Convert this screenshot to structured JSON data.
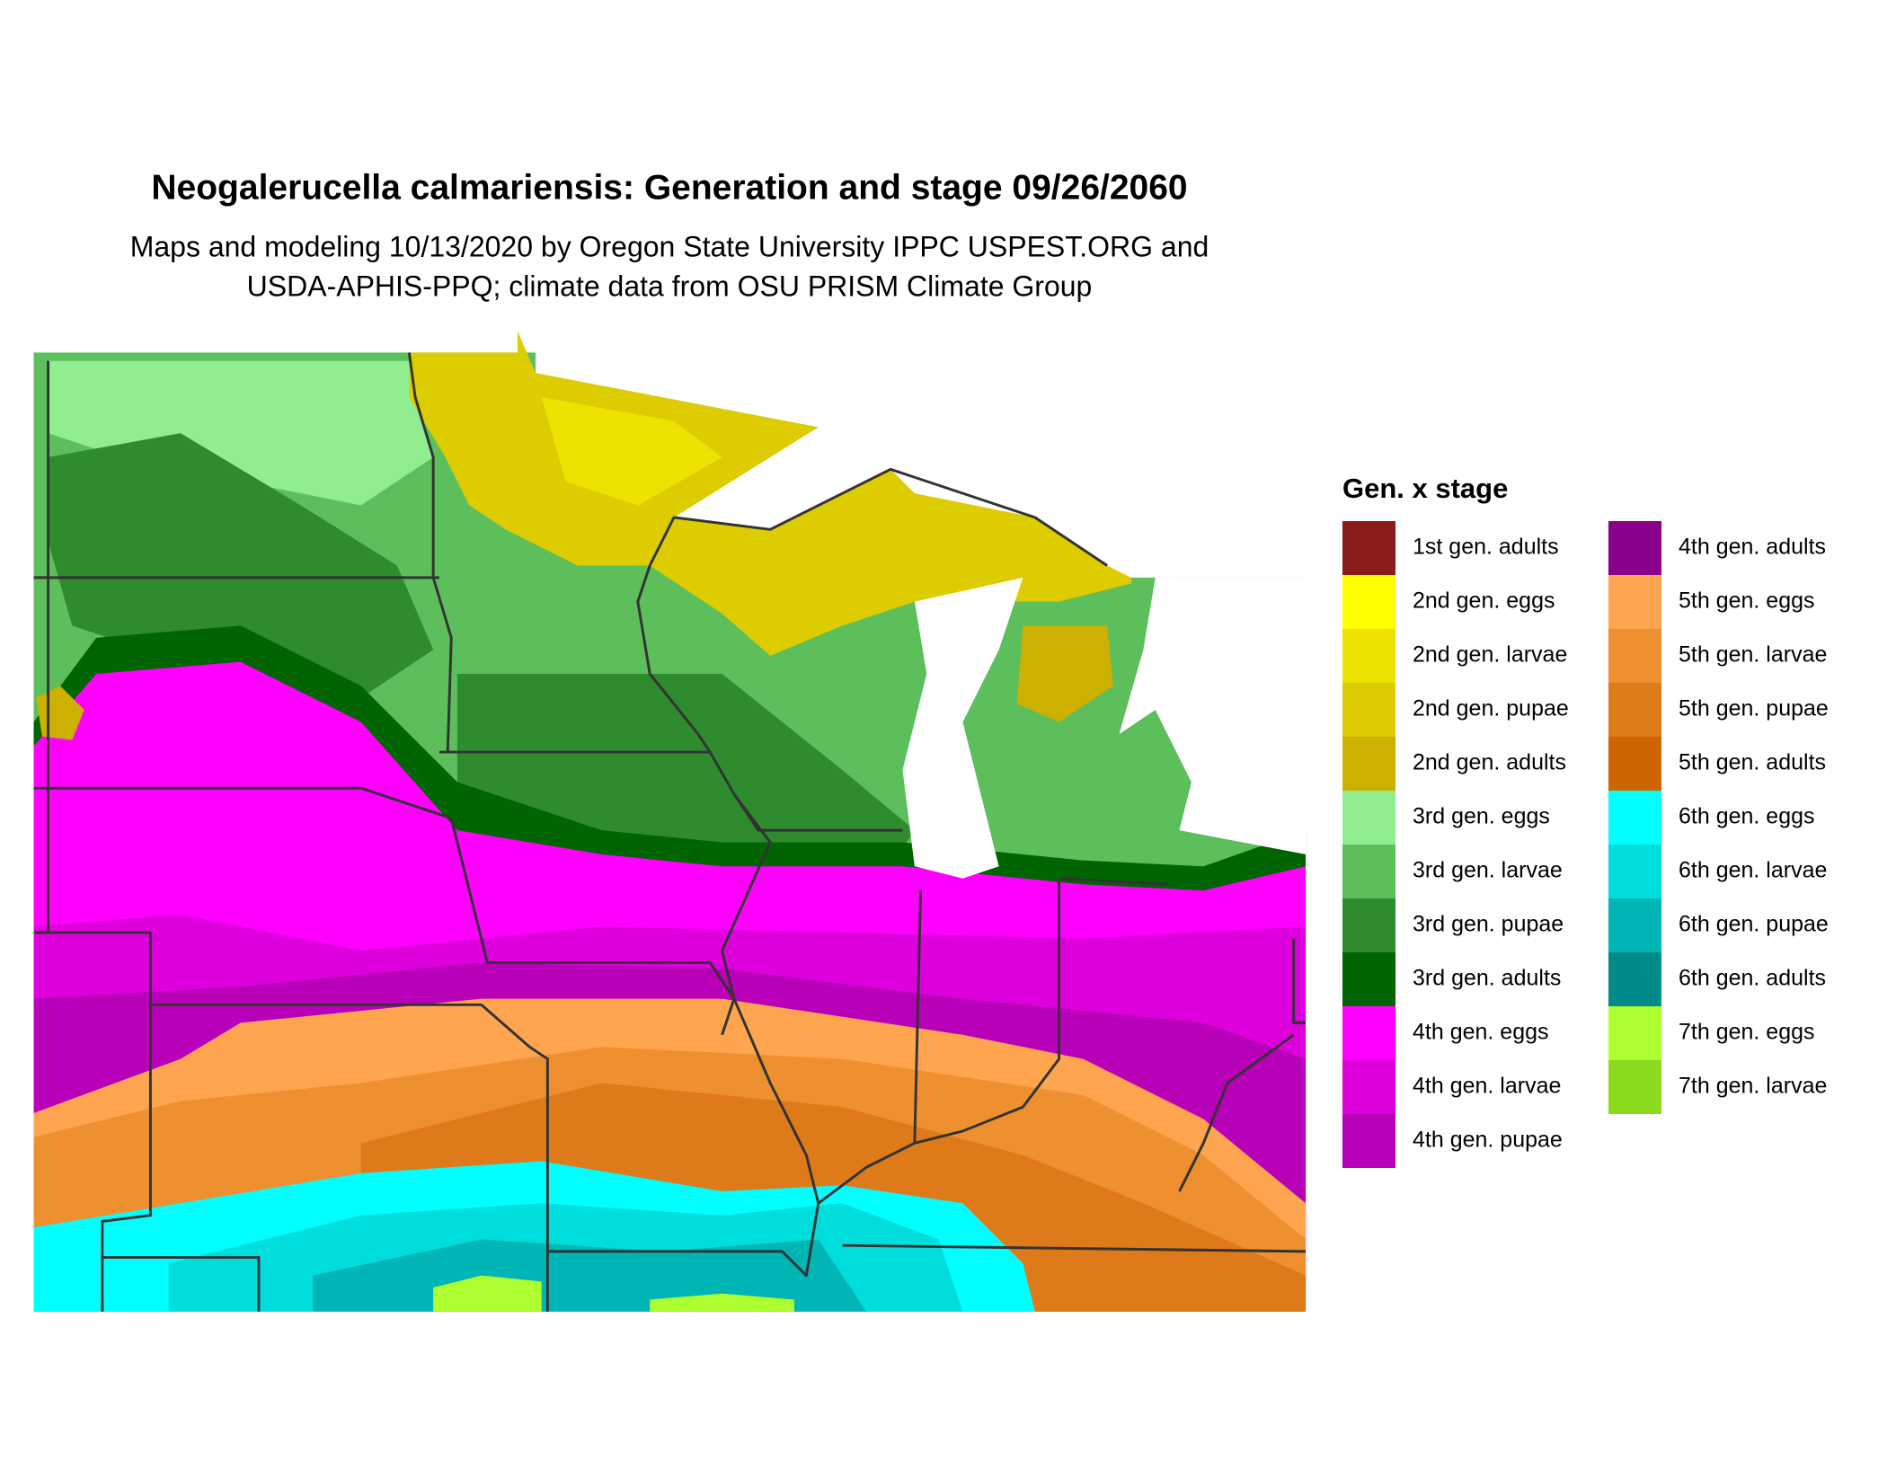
{
  "title": "Neogalerucella calmariensis: Generation and stage 09/26/2060",
  "subtitle": [
    "Maps and modeling 10/13/2020 by Oregon State University IPPC USPEST.ORG and",
    "USDA-APHIS-PPQ; climate data from OSU PRISM Climate Group"
  ],
  "legend": {
    "title": "Gen. x stage",
    "items": [
      {
        "label": "1st gen. adults",
        "color": "#8b1a1a"
      },
      {
        "label": "2nd gen. eggs",
        "color": "#ffff00"
      },
      {
        "label": "2nd gen. larvae",
        "color": "#eee200"
      },
      {
        "label": "2nd gen. pupae",
        "color": "#ddcc00"
      },
      {
        "label": "2nd gen. adults",
        "color": "#ccb100"
      },
      {
        "label": "3rd gen. eggs",
        "color": "#90ee90"
      },
      {
        "label": "3rd gen. larvae",
        "color": "#5cbf5c"
      },
      {
        "label": "3rd gen. pupae",
        "color": "#2e8b2e"
      },
      {
        "label": "3rd gen. adults",
        "color": "#006400"
      },
      {
        "label": "4th gen. eggs",
        "color": "#ff00ff"
      },
      {
        "label": "4th gen. larvae",
        "color": "#dd00dd"
      },
      {
        "label": "4th gen. pupae",
        "color": "#b800b8"
      },
      {
        "label": "4th gen. adults",
        "color": "#8b008b"
      },
      {
        "label": "5th gen. eggs",
        "color": "#ffa54f"
      },
      {
        "label": "5th gen. larvae",
        "color": "#ee9030"
      },
      {
        "label": "5th gen. pupae",
        "color": "#de7a1a"
      },
      {
        "label": "5th gen. adults",
        "color": "#cd6600"
      },
      {
        "label": "6th gen. eggs",
        "color": "#00ffff"
      },
      {
        "label": "6th gen. larvae",
        "color": "#00dddd"
      },
      {
        "label": "6th gen. pupae",
        "color": "#00b5b5"
      },
      {
        "label": "6th gen. adults",
        "color": "#008b8b"
      },
      {
        "label": "7th gen. eggs",
        "color": "#adff2f"
      },
      {
        "label": "7th gen. larvae",
        "color": "#8ada20"
      }
    ]
  }
}
